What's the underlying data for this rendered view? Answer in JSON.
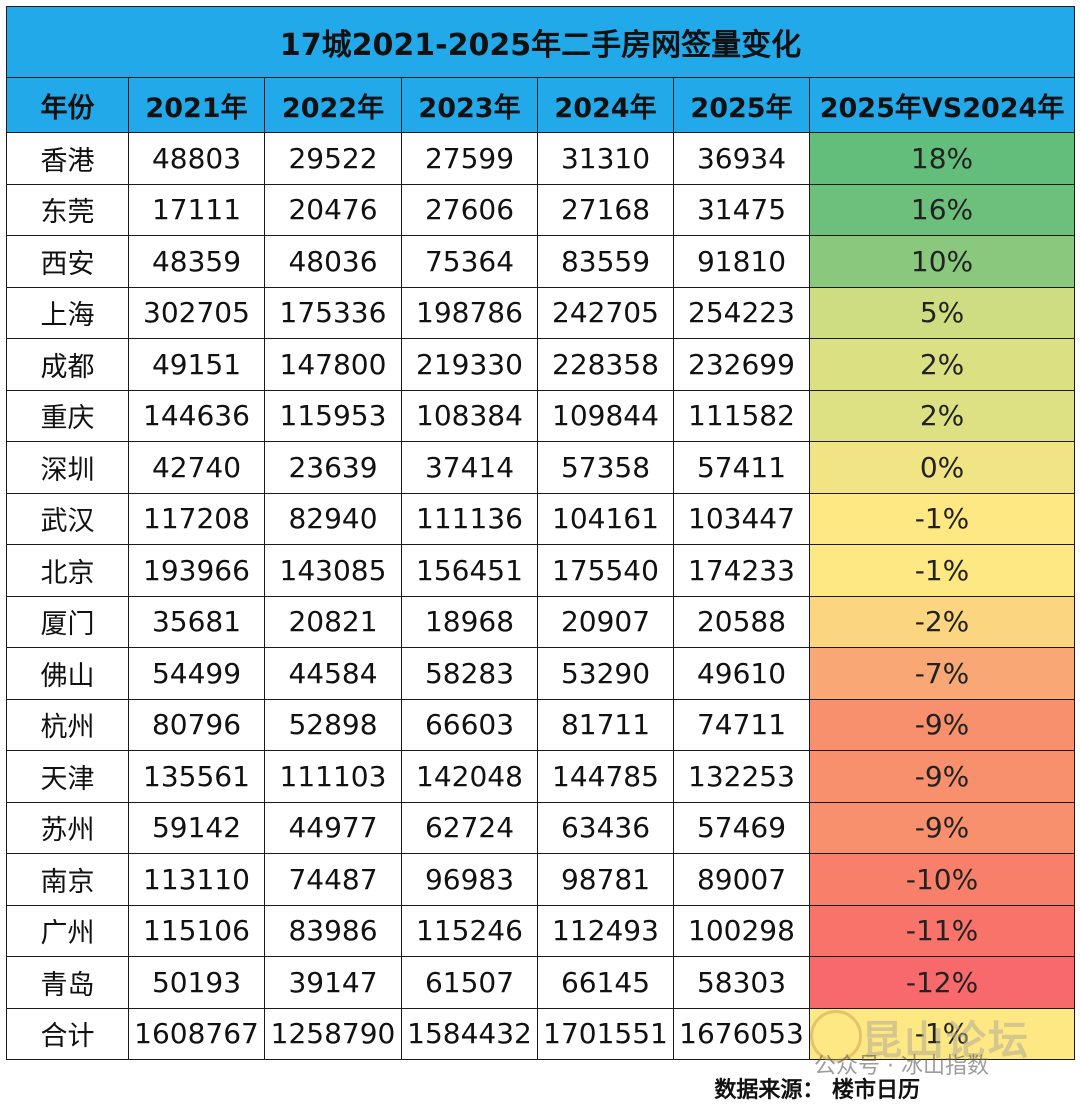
{
  "title": "17城2021-2025年二手房网签量变化",
  "headers": [
    "年份",
    "2021年",
    "2022年",
    "2023年",
    "2024年",
    "2025年",
    "2025年VS2024年"
  ],
  "rows": [
    {
      "city": "香港",
      "v": [
        "48803",
        "29522",
        "27599",
        "31310",
        "36934"
      ],
      "pct": "18%",
      "color": "#63be7b"
    },
    {
      "city": "东莞",
      "v": [
        "17111",
        "20476",
        "27606",
        "27168",
        "31475"
      ],
      "pct": "16%",
      "color": "#6cc07c"
    },
    {
      "city": "西安",
      "v": [
        "48359",
        "48036",
        "75364",
        "83559",
        "91810"
      ],
      "pct": "10%",
      "color": "#8ac97d"
    },
    {
      "city": "上海",
      "v": [
        "302705",
        "175336",
        "198786",
        "242705",
        "254223"
      ],
      "pct": "5%",
      "color": "#cfdd82"
    },
    {
      "city": "成都",
      "v": [
        "49151",
        "147800",
        "219330",
        "228358",
        "232699"
      ],
      "pct": "2%",
      "color": "#dbe083"
    },
    {
      "city": "重庆",
      "v": [
        "144636",
        "115953",
        "108384",
        "109844",
        "111582"
      ],
      "pct": "2%",
      "color": "#dde183"
    },
    {
      "city": "深圳",
      "v": [
        "42740",
        "23639",
        "37414",
        "57358",
        "57411"
      ],
      "pct": "0%",
      "color": "#f0e484"
    },
    {
      "city": "武汉",
      "v": [
        "117208",
        "82940",
        "111136",
        "104161",
        "103447"
      ],
      "pct": "-1%",
      "color": "#fde883"
    },
    {
      "city": "北京",
      "v": [
        "193966",
        "143085",
        "156451",
        "175540",
        "174233"
      ],
      "pct": "-1%",
      "color": "#fde883"
    },
    {
      "city": "厦门",
      "v": [
        "35681",
        "20821",
        "18968",
        "20907",
        "20588"
      ],
      "pct": "-2%",
      "color": "#fcd580"
    },
    {
      "city": "佛山",
      "v": [
        "54499",
        "44584",
        "58283",
        "53290",
        "49610"
      ],
      "pct": "-7%",
      "color": "#f9a774"
    },
    {
      "city": "杭州",
      "v": [
        "80796",
        "52898",
        "66603",
        "81711",
        "74711"
      ],
      "pct": "-9%",
      "color": "#f8906e"
    },
    {
      "city": "天津",
      "v": [
        "135561",
        "111103",
        "142048",
        "144785",
        "132253"
      ],
      "pct": "-9%",
      "color": "#f8906e"
    },
    {
      "city": "苏州",
      "v": [
        "59142",
        "44977",
        "62724",
        "63436",
        "57469"
      ],
      "pct": "-9%",
      "color": "#f8906e"
    },
    {
      "city": "南京",
      "v": [
        "113110",
        "74487",
        "96983",
        "98781",
        "89007"
      ],
      "pct": "-10%",
      "color": "#f8806b"
    },
    {
      "city": "广州",
      "v": [
        "115106",
        "83986",
        "115246",
        "112493",
        "100298"
      ],
      "pct": "-11%",
      "color": "#f87369"
    },
    {
      "city": "青岛",
      "v": [
        "50193",
        "39147",
        "61507",
        "66145",
        "58303"
      ],
      "pct": "-12%",
      "color": "#f8696b"
    },
    {
      "city": "合计",
      "v": [
        "1608767",
        "1258790",
        "1584432",
        "1701551",
        "1676053"
      ],
      "pct": "-1%",
      "color": "#fde883"
    }
  ],
  "source": "数据来源： 楼市日历",
  "watermark": {
    "big": "昆山论坛",
    "small": "公众号 · 冰山指数"
  }
}
